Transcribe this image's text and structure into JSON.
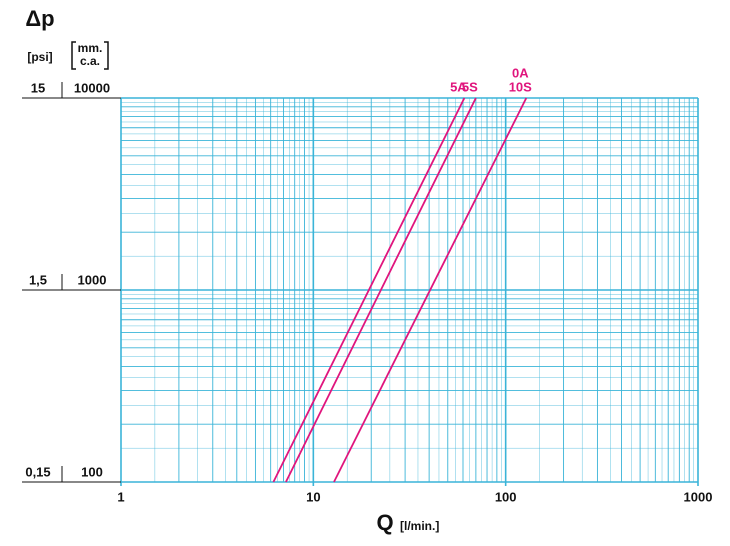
{
  "chart_data": {
    "type": "line",
    "log_x": true,
    "log_y": true,
    "grid": true,
    "y_label": "Δp",
    "y2_label": "[psi]",
    "y_unit": [
      "mm.",
      "c.a."
    ],
    "x_label": "Q",
    "x_unit": "[l/min.]",
    "xlim": [
      1,
      1000
    ],
    "xticks": [
      1,
      10,
      100,
      1000
    ],
    "ylim": [
      100,
      10000
    ],
    "yticks": [
      100,
      1000,
      10000
    ],
    "y2lim": [
      0.15,
      15
    ],
    "y2ticks": [
      {
        "value": 0.15,
        "label": "0,15"
      },
      {
        "value": 1.5,
        "label": "1,5"
      },
      15
    ],
    "grid_color": "#3ab4d8",
    "series": [
      {
        "label": [
          "5A"
        ],
        "color": "#e0157d",
        "x": [
          6.2,
          61
        ],
        "values": [
          100,
          10000
        ]
      },
      {
        "label": [
          "5S"
        ],
        "color": "#e0157d",
        "x": [
          7.2,
          70
        ],
        "values": [
          100,
          10000
        ]
      },
      {
        "label": [
          "0A",
          "10S"
        ],
        "color": "#e0157d",
        "x": [
          12.8,
          128
        ],
        "values": [
          100,
          10000
        ]
      }
    ]
  }
}
